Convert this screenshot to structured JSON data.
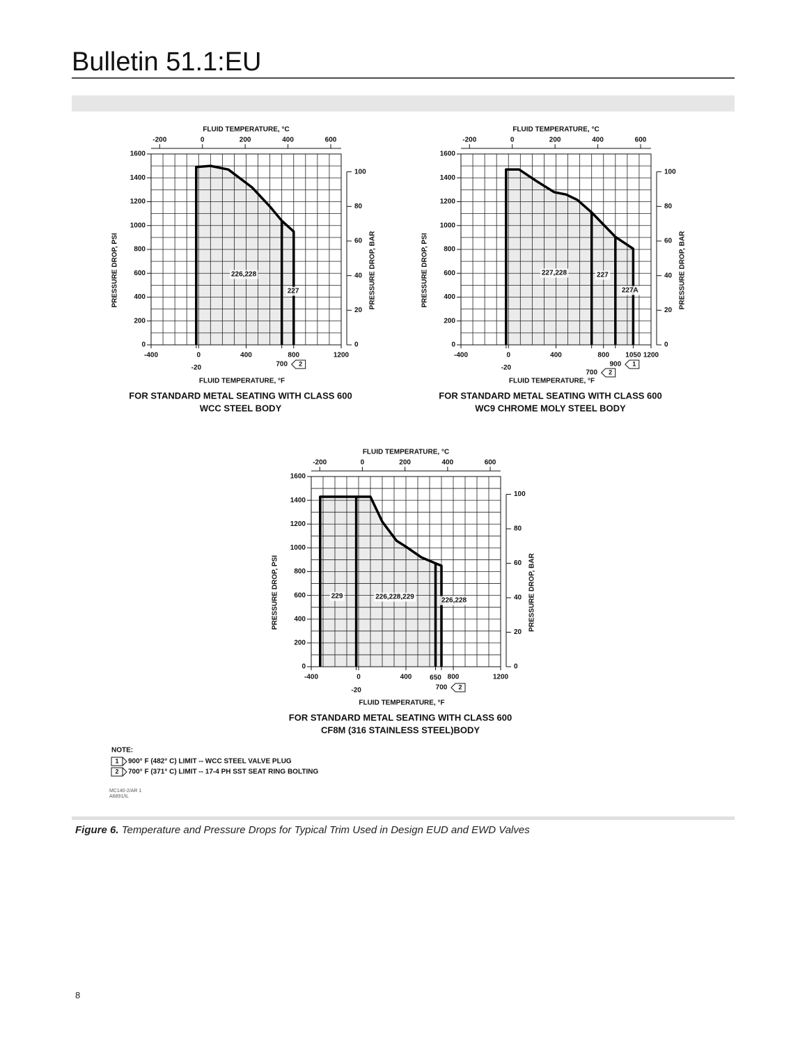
{
  "header": {
    "title": "Bulletin 51.1:EU"
  },
  "chart_data": [
    {
      "type": "area",
      "x2label": "FLUID TEMPERATURE, °C",
      "xlabel": "FLUID TEMPERATURE, °F",
      "ylabel": "PRESSURE DROP, PSI",
      "y2label": "PRESSURE DROP, BAR",
      "caption": [
        "FOR STANDARD METAL SEATING WITH CLASS 600",
        "WCC STEEL BODY"
      ],
      "xlim": [
        -400,
        1200
      ],
      "xticks": [
        -400,
        0,
        400,
        800,
        1200
      ],
      "x2lim": [
        -240,
        648.89
      ],
      "x2ticks": [
        -200,
        0,
        200,
        400,
        600
      ],
      "ylim": [
        0,
        1600
      ],
      "yticks": [
        0,
        200,
        400,
        600,
        800,
        1000,
        1200,
        1400,
        1600
      ],
      "y2lim": [
        0,
        110.32
      ],
      "y2ticks": [
        0,
        20,
        40,
        60,
        80,
        100
      ],
      "xgrid": [
        -400,
        -300,
        -200,
        -100,
        0,
        100,
        200,
        300,
        400,
        500,
        600,
        700,
        800,
        900,
        1000,
        1100,
        1200
      ],
      "ygrid": [
        0,
        100,
        200,
        300,
        400,
        500,
        600,
        700,
        800,
        900,
        1000,
        1100,
        1200,
        1300,
        1400,
        1500,
        1600
      ],
      "grid": true,
      "color": "#000000",
      "fill": "#e4e4e4",
      "lines": [
        {
          "x": [
            -20,
            -20,
            100,
            250,
            450,
            600,
            700,
            800,
            800
          ],
          "values": [
            0,
            1490,
            1500,
            1470,
            1320,
            1160,
            1040,
            950,
            0
          ]
        },
        {
          "x": [
            700,
            700
          ],
          "values": [
            1040,
            0
          ]
        }
      ],
      "markers": [
        {
          "value": -20,
          "label": "-20"
        },
        {
          "value": 700,
          "label": "700",
          "note": "2"
        }
      ],
      "region_labels": [
        "226,228",
        "227"
      ]
    },
    {
      "type": "area",
      "x2label": "FLUID TEMPERATURE, °C",
      "xlabel": "FLUID TEMPERATURE, °F",
      "ylabel": "PRESSURE DROP, PSI",
      "y2label": "PRESSURE DROP, BAR",
      "caption": [
        "FOR STANDARD METAL SEATING WITH CLASS 600",
        "WC9 CHROME MOLY STEEL BODY"
      ],
      "xlim": [
        -400,
        1200
      ],
      "xticks": [
        -400,
        0,
        400,
        800,
        1200
      ],
      "x2lim": [
        -240,
        648.89
      ],
      "x2ticks": [
        -200,
        0,
        200,
        400,
        600
      ],
      "ylim": [
        0,
        1600
      ],
      "yticks": [
        0,
        200,
        400,
        600,
        800,
        1000,
        1200,
        1400,
        1600
      ],
      "y2lim": [
        0,
        110.32
      ],
      "y2ticks": [
        0,
        20,
        40,
        60,
        80,
        100
      ],
      "xgrid": [
        -400,
        -300,
        -200,
        -100,
        0,
        100,
        200,
        300,
        400,
        500,
        600,
        700,
        800,
        900,
        1000,
        1100,
        1200
      ],
      "ygrid": [
        0,
        100,
        200,
        300,
        400,
        500,
        600,
        700,
        800,
        900,
        1000,
        1100,
        1200,
        1300,
        1400,
        1500,
        1600
      ],
      "grid": true,
      "color": "#000000",
      "fill": "#e4e4e4",
      "lines": [
        {
          "x": [
            -20,
            -20,
            90,
            240,
            385,
            485,
            580,
            700,
            900,
            1050,
            1050
          ],
          "values": [
            0,
            1470,
            1470,
            1370,
            1280,
            1260,
            1215,
            1110,
            905,
            805,
            0
          ]
        },
        {
          "x": [
            700,
            700
          ],
          "values": [
            1110,
            0
          ]
        },
        {
          "x": [
            900,
            900
          ],
          "values": [
            905,
            0
          ]
        }
      ],
      "markers": [
        {
          "value": -20,
          "label": "-20"
        },
        {
          "value": 700,
          "label": "700",
          "note": "2"
        },
        {
          "value": 900,
          "label": "900",
          "note": "1"
        },
        {
          "value": 1050,
          "label": "1050"
        }
      ],
      "region_labels": [
        "227,228",
        "227",
        "227A"
      ]
    },
    {
      "type": "area",
      "x2label": "FLUID TEMPERATURE, °C",
      "xlabel": "FLUID TEMPERATURE, °F",
      "ylabel": "PRESSURE DROP, PSI",
      "y2label": "PRESSURE DROP, BAR",
      "caption": [
        "FOR STANDARD METAL SEATING WITH CLASS 600",
        "CF8M  (316 STAINLESS STEEL)BODY"
      ],
      "xlim": [
        -400,
        1200
      ],
      "xticks": [
        -400,
        0,
        400,
        800,
        1200
      ],
      "x2lim": [
        -240,
        648.89
      ],
      "x2ticks": [
        -200,
        0,
        200,
        400,
        600
      ],
      "ylim": [
        0,
        1600
      ],
      "yticks": [
        0,
        200,
        400,
        600,
        800,
        1000,
        1200,
        1400,
        1600
      ],
      "y2lim": [
        0,
        110.32
      ],
      "y2ticks": [
        0,
        20,
        40,
        60,
        80,
        100
      ],
      "xgrid": [
        -400,
        -300,
        -200,
        -100,
        0,
        100,
        200,
        300,
        400,
        500,
        600,
        700,
        800,
        900,
        1000,
        1100,
        1200
      ],
      "ygrid": [
        0,
        100,
        200,
        300,
        400,
        500,
        600,
        700,
        800,
        900,
        1000,
        1100,
        1200,
        1300,
        1400,
        1500,
        1600
      ],
      "grid": true,
      "color": "#000000",
      "fill": "#e4e4e4",
      "lines": [
        {
          "x": [
            -325,
            -325,
            100,
            200,
            320,
            400,
            530,
            650,
            700,
            700
          ],
          "values": [
            0,
            1430,
            1430,
            1220,
            1060,
            1010,
            920,
            870,
            850,
            0
          ]
        },
        {
          "x": [
            -20,
            -20
          ],
          "values": [
            1430,
            0
          ]
        },
        {
          "x": [
            650,
            650
          ],
          "values": [
            870,
            0
          ]
        }
      ],
      "markers": [
        {
          "value": -20,
          "label": "-20"
        },
        {
          "value": 650,
          "label": "650"
        },
        {
          "value": 700,
          "label": "700",
          "note": "2"
        }
      ],
      "region_labels": [
        "229",
        "226,228,229",
        "226,228"
      ]
    }
  ],
  "notes": {
    "title": "NOTE:",
    "items": [
      {
        "marker": "1",
        "text": "900° F (482° C) LIMIT -- WCC STEEL VALVE PLUG"
      },
      {
        "marker": "2",
        "text": "700° F (371° C) LIMIT -- 17-4 PH SST SEAT RING BOLTING"
      }
    ]
  },
  "codes": [
    "MC140-2/AR 1",
    "A6891/IL"
  ],
  "figure": {
    "label": "Figure 6.",
    "text": "Temperature and Pressure Drops for Typical Trim Used in Design EUD and EWD Valves"
  },
  "page_number": "8"
}
